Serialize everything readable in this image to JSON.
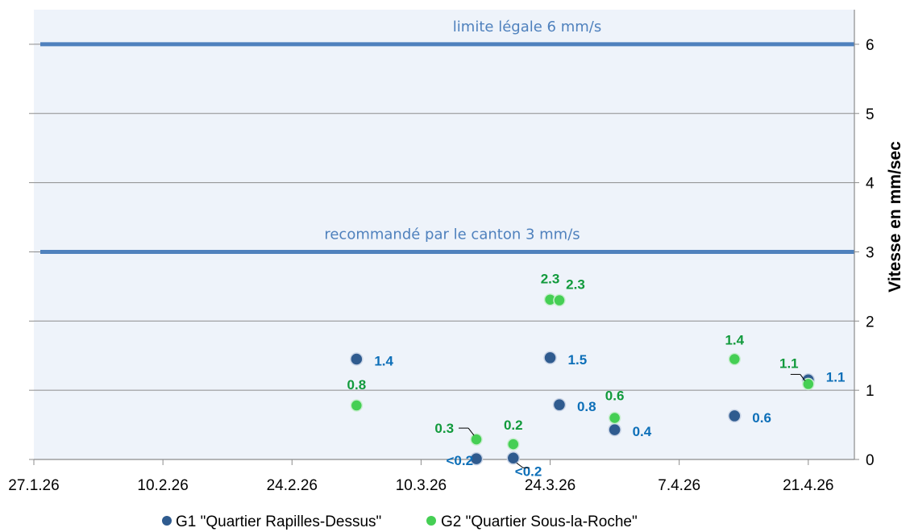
{
  "chart_data": {
    "type": "scatter",
    "title": "",
    "xlabel": "",
    "ylabel": "Vitesse en mm/sec",
    "y_axis_side": "right",
    "x_ticks": [
      "27.1.26",
      "10.2.26",
      "24.2.26",
      "10.3.26",
      "24.3.26",
      "7.4.26",
      "21.4.26"
    ],
    "xlim": [
      "2026-01-27",
      "2026-04-26"
    ],
    "y_ticks": [
      0,
      1,
      2,
      3,
      4,
      5,
      6
    ],
    "ylim": [
      0,
      6.5
    ],
    "grid": "horizontal",
    "legend_position": "bottom",
    "reference_lines": [
      {
        "value": 6,
        "label": "limite légale 6 mm/s",
        "color": "#4f81bd"
      },
      {
        "value": 3,
        "label": "recommandé par le canton 3 mm/s",
        "color": "#4f81bd"
      }
    ],
    "series": [
      {
        "name": "G1 \"Quartier Rapilles-Dessus\"",
        "color": "#2f5b8f",
        "label_color": "#0d6fb8",
        "points": [
          {
            "x": "2026-03-03",
            "y": 1.45,
            "label": "1.4"
          },
          {
            "x": "2026-03-16",
            "y": 0.01,
            "label": "<0.2"
          },
          {
            "x": "2026-03-20",
            "y": 0.02,
            "label": "<0.2"
          },
          {
            "x": "2026-03-24",
            "y": 1.47,
            "label": "1.5"
          },
          {
            "x": "2026-03-25",
            "y": 0.79,
            "label": "0.8"
          },
          {
            "x": "2026-03-31",
            "y": 0.43,
            "label": "0.4"
          },
          {
            "x": "2026-04-13",
            "y": 0.63,
            "label": "0.6"
          },
          {
            "x": "2026-04-21",
            "y": 1.15,
            "label": "1.1"
          }
        ]
      },
      {
        "name": "G2 \"Quartier Sous-la-Roche\"",
        "color": "#45cf54",
        "label_color": "#119a3c",
        "points": [
          {
            "x": "2026-03-03",
            "y": 0.78,
            "label": "0.8"
          },
          {
            "x": "2026-03-16",
            "y": 0.29,
            "label": "0.3"
          },
          {
            "x": "2026-03-20",
            "y": 0.22,
            "label": "0.2"
          },
          {
            "x": "2026-03-24",
            "y": 2.31,
            "label": "2.3"
          },
          {
            "x": "2026-03-25",
            "y": 2.3,
            "label": "2.3"
          },
          {
            "x": "2026-03-31",
            "y": 0.6,
            "label": "0.6"
          },
          {
            "x": "2026-04-13",
            "y": 1.45,
            "label": "1.4"
          },
          {
            "x": "2026-04-21",
            "y": 1.09,
            "label": "1.1"
          }
        ]
      }
    ]
  }
}
